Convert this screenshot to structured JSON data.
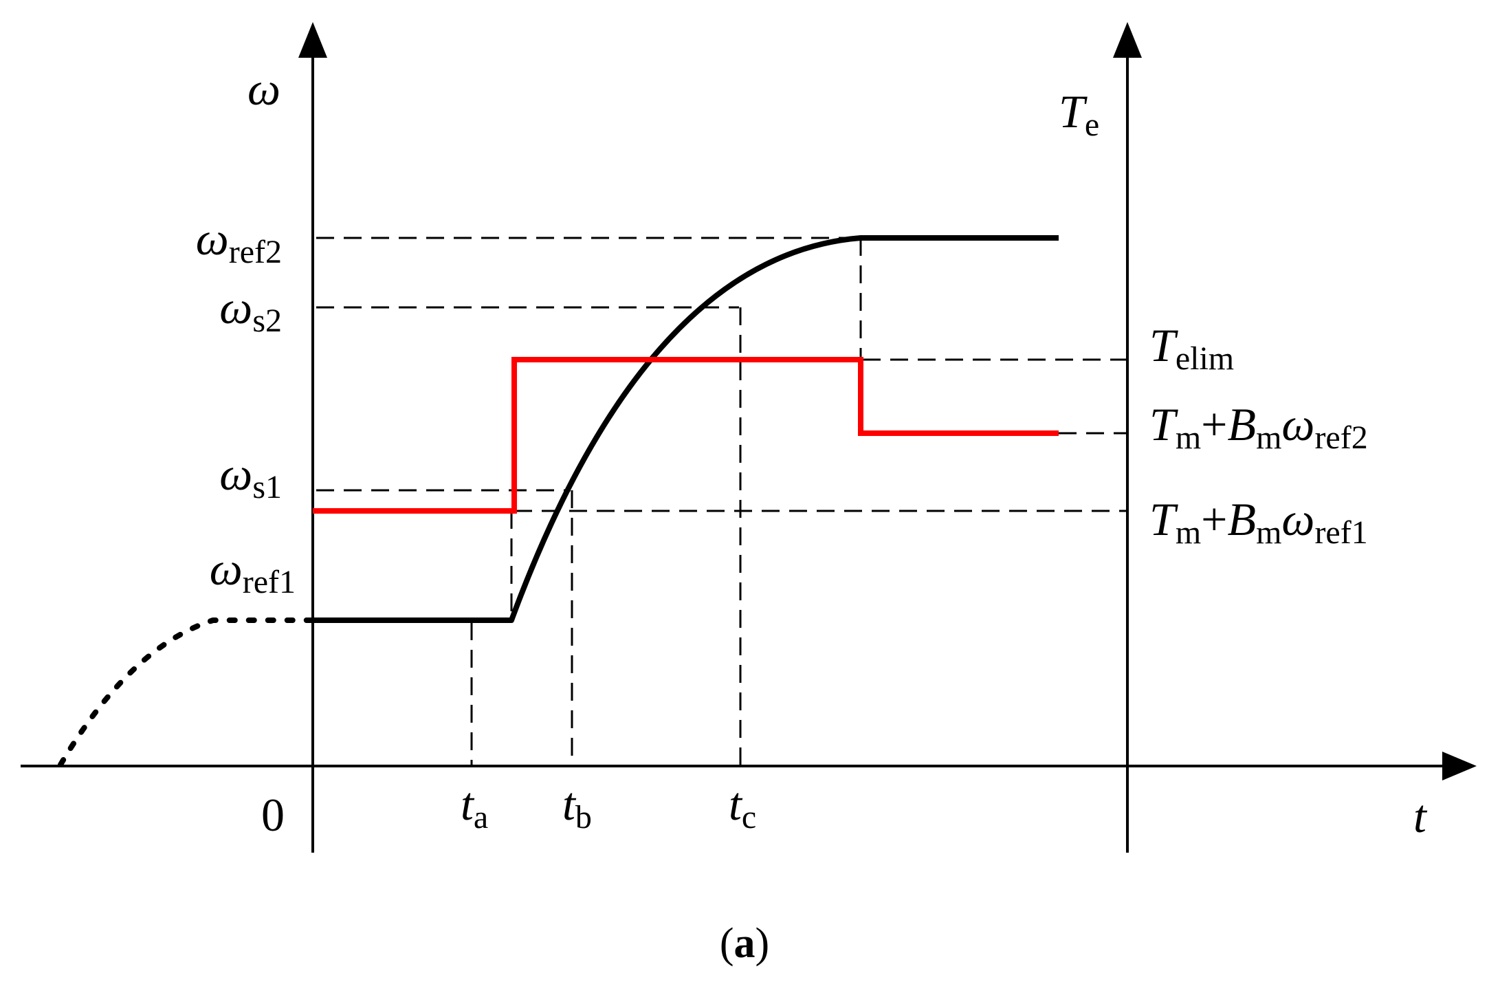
{
  "colors": {
    "speed_curve": "#000000",
    "torque_curve": "#ff0000",
    "axes": "#000000",
    "guides": "#000000"
  },
  "axes": {
    "left_y_symbol": "ω",
    "right_y_symbol": "T",
    "right_y_sub": "e",
    "x_symbol": "t",
    "origin_label": "0"
  },
  "speed_levels": {
    "ref1": {
      "sym": "ω",
      "sub": "ref1"
    },
    "s1": {
      "sym": "ω",
      "sub": "s1"
    },
    "s2": {
      "sym": "ω",
      "sub": "s2"
    },
    "ref2": {
      "sym": "ω",
      "sub": "ref2"
    }
  },
  "time_marks": {
    "ta": {
      "sym": "t",
      "sub": "a"
    },
    "tb": {
      "sym": "t",
      "sub": "b"
    },
    "tc": {
      "sym": "t",
      "sub": "c"
    }
  },
  "torque_levels": {
    "elim": {
      "sym": "T",
      "sub": "elim"
    },
    "ref2": {
      "t": "T",
      "tsub": "m",
      "plus": "+",
      "b": "B",
      "bsub": "m",
      "w": "ω",
      "wsub": "ref2"
    },
    "ref1": {
      "t": "T",
      "tsub": "m",
      "plus": "+",
      "b": "B",
      "bsub": "m",
      "w": "ω",
      "wsub": "ref1"
    }
  },
  "caption": {
    "open": "(",
    "letter": "a",
    "close": ")"
  }
}
